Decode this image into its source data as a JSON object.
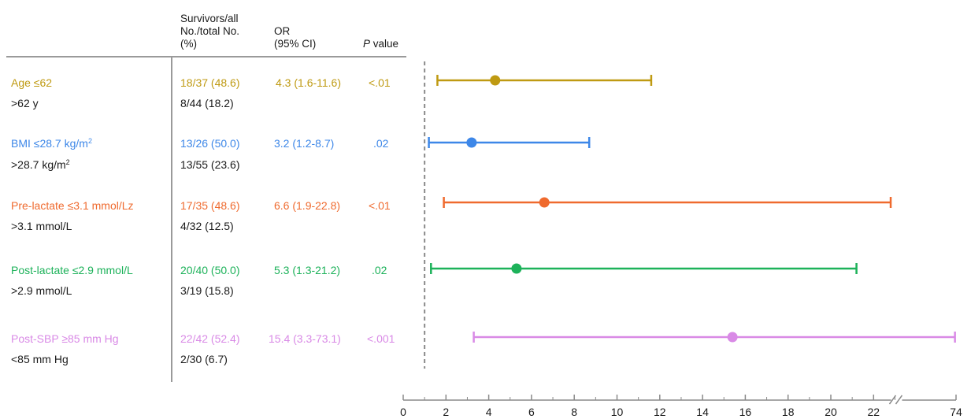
{
  "headers": {
    "count_line1": "Survivors/all",
    "count_line2": "No./total No.",
    "count_line3": "(%)",
    "or_line1": "OR",
    "or_line2": "(95% CI)",
    "p_italic": "P",
    "p_rest": " value"
  },
  "rows": [
    {
      "label_primary": "Age ≤62",
      "label_primary_sup": "",
      "count_primary": "18/37 (48.6)",
      "or": "4.3 (1.6-11.6)",
      "p": "<.01",
      "label_secondary": ">62 y",
      "label_secondary_sup": "",
      "count_secondary": "8/44 (18.2)",
      "color": "#bf9a12"
    },
    {
      "label_primary": "BMI ≤28.7 kg/m",
      "label_primary_sup": "2",
      "count_primary": "13/26 (50.0)",
      "or": "3.2 (1.2-8.7)",
      "p": ".02",
      "label_secondary": ">28.7 kg/m",
      "label_secondary_sup": "2",
      "count_secondary": "13/55 (23.6)",
      "color": "#3d87e8"
    },
    {
      "label_primary": "Pre-lactate ≤3.1 mmol/Lz",
      "label_primary_sup": "",
      "count_primary": "17/35 (48.6)",
      "or": "6.6 (1.9-22.8)",
      "p": "<.01",
      "label_secondary": ">3.1 mmol/L",
      "label_secondary_sup": "",
      "count_secondary": "4/32 (12.5)",
      "color": "#ef6a2e"
    },
    {
      "label_primary": "Post-lactate ≤2.9 mmol/L",
      "label_primary_sup": "",
      "count_primary": "20/40 (50.0)",
      "or": "5.3 (1.3-21.2)",
      "p": ".02",
      "label_secondary": ">2.9 mmol/L",
      "label_secondary_sup": "",
      "count_secondary": "3/19 (15.8)",
      "color": "#1db25a"
    },
    {
      "label_primary": "Post-SBP ≥85 mm Hg",
      "label_primary_sup": "",
      "count_primary": "22/42 (52.4)",
      "or": "15.4 (3.3-73.1)",
      "p": "<.001",
      "label_secondary": "<85 mm Hg",
      "label_secondary_sup": "",
      "count_secondary": "2/30 (6.7)",
      "color": "#d98ae6"
    }
  ],
  "chart_data": {
    "type": "forest",
    "reference_line": 1,
    "reference_style": "dashed",
    "axis_break": "between 22 and 74",
    "x_ticks": [
      0,
      2,
      4,
      6,
      8,
      10,
      12,
      14,
      16,
      18,
      20,
      22,
      74
    ],
    "x_tick_labels": [
      "0",
      "2",
      "4",
      "6",
      "8",
      "10",
      "12",
      "14",
      "16",
      "18",
      "20",
      "22",
      "74"
    ],
    "series": [
      {
        "or": 4.3,
        "ci_low": 1.6,
        "ci_high": 11.6,
        "color": "#bf9a12"
      },
      {
        "or": 3.2,
        "ci_low": 1.2,
        "ci_high": 8.7,
        "color": "#3d87e8"
      },
      {
        "or": 6.6,
        "ci_low": 1.9,
        "ci_high": 22.8,
        "color": "#ef6a2e"
      },
      {
        "or": 5.3,
        "ci_low": 1.3,
        "ci_high": 21.2,
        "color": "#1db25a"
      },
      {
        "or": 15.4,
        "ci_low": 3.3,
        "ci_high": 73.1,
        "color": "#d98ae6"
      }
    ]
  }
}
